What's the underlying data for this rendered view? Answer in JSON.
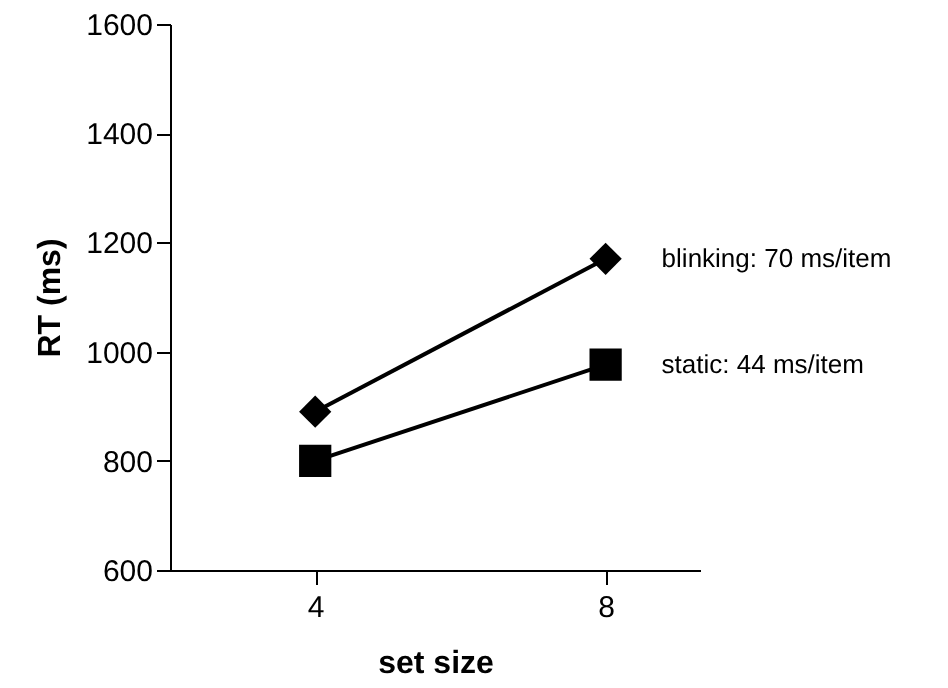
{
  "chart_data": {
    "type": "line",
    "xlabel": "set size",
    "ylabel": "RT (ms)",
    "x": [
      4,
      8
    ],
    "xlim": [
      2,
      9.3
    ],
    "xticks": [
      4,
      8
    ],
    "ylim": [
      600,
      1600
    ],
    "yticks": [
      600,
      800,
      1000,
      1200,
      1400,
      1600
    ],
    "grid": false,
    "legend": false,
    "line_style": "solid",
    "series": [
      {
        "name": "blinking:  70 ms/item",
        "color": "#000000",
        "marker": "diamond",
        "values": [
          890,
          1170
        ]
      },
      {
        "name": "static:  44 ms/item",
        "color": "#000000",
        "marker": "square",
        "values": [
          800,
          976
        ]
      }
    ]
  }
}
